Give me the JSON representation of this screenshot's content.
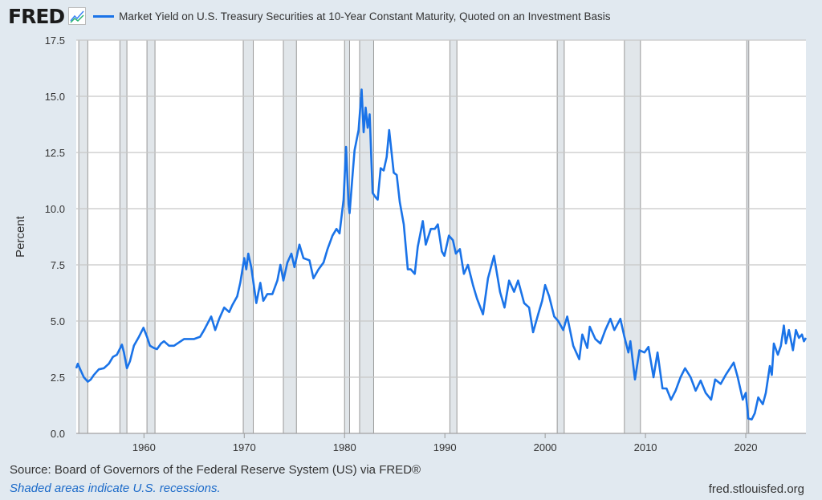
{
  "header": {
    "logo": "FRED",
    "series_title": "Market Yield on U.S. Treasury Securities at 10-Year Constant Maturity, Quoted on an Investment Basis"
  },
  "footer": {
    "source": "Source: Board of Governors of the Federal Reserve System (US) via FRED®",
    "note": "Shaded areas indicate U.S. recessions.",
    "site": "fred.stlouisfed.org"
  },
  "chart_data": {
    "type": "line",
    "title": "",
    "xlabel": "",
    "ylabel": "Percent",
    "xlim": [
      1953.25,
      2026.0
    ],
    "ylim": [
      0,
      17.5
    ],
    "grid": "horizontal",
    "line_color": "#1a73e8",
    "recession_color": "#e1e6ea",
    "x_ticks": [
      "1960",
      "1970",
      "1980",
      "1990",
      "2000",
      "2010",
      "2020"
    ],
    "y_ticks": [
      "0.0",
      "2.5",
      "5.0",
      "7.5",
      "10.0",
      "12.5",
      "15.0",
      "17.5"
    ],
    "recessions": [
      [
        1953.5,
        1954.4
      ],
      [
        1957.6,
        1958.3
      ],
      [
        1960.3,
        1961.1
      ],
      [
        1969.9,
        1970.9
      ],
      [
        1973.9,
        1975.2
      ],
      [
        1980.0,
        1980.5
      ],
      [
        1981.5,
        1982.9
      ],
      [
        1990.5,
        1991.2
      ],
      [
        2001.2,
        2001.9
      ],
      [
        2007.9,
        2009.5
      ],
      [
        2020.1,
        2020.3
      ]
    ],
    "series": [
      {
        "points": [
          [
            1953.25,
            2.9
          ],
          [
            1953.4,
            3.1
          ],
          [
            1953.7,
            2.8
          ],
          [
            1954.0,
            2.5
          ],
          [
            1954.4,
            2.3
          ],
          [
            1954.7,
            2.4
          ],
          [
            1955.0,
            2.6
          ],
          [
            1955.5,
            2.85
          ],
          [
            1956.0,
            2.9
          ],
          [
            1956.5,
            3.1
          ],
          [
            1956.9,
            3.4
          ],
          [
            1957.3,
            3.5
          ],
          [
            1957.8,
            3.95
          ],
          [
            1958.0,
            3.6
          ],
          [
            1958.3,
            2.9
          ],
          [
            1958.6,
            3.2
          ],
          [
            1959.0,
            3.9
          ],
          [
            1959.5,
            4.3
          ],
          [
            1959.95,
            4.7
          ],
          [
            1960.3,
            4.3
          ],
          [
            1960.6,
            3.9
          ],
          [
            1961.0,
            3.8
          ],
          [
            1961.3,
            3.75
          ],
          [
            1961.7,
            4.0
          ],
          [
            1962.0,
            4.1
          ],
          [
            1962.5,
            3.9
          ],
          [
            1963.0,
            3.9
          ],
          [
            1963.5,
            4.05
          ],
          [
            1964.0,
            4.2
          ],
          [
            1964.5,
            4.2
          ],
          [
            1965.0,
            4.2
          ],
          [
            1965.6,
            4.3
          ],
          [
            1966.0,
            4.6
          ],
          [
            1966.7,
            5.2
          ],
          [
            1967.1,
            4.6
          ],
          [
            1967.5,
            5.1
          ],
          [
            1968.0,
            5.6
          ],
          [
            1968.5,
            5.4
          ],
          [
            1968.8,
            5.7
          ],
          [
            1969.3,
            6.1
          ],
          [
            1969.6,
            6.7
          ],
          [
            1970.0,
            7.8
          ],
          [
            1970.2,
            7.3
          ],
          [
            1970.4,
            8.0
          ],
          [
            1970.7,
            7.4
          ],
          [
            1971.2,
            5.8
          ],
          [
            1971.6,
            6.7
          ],
          [
            1971.9,
            5.9
          ],
          [
            1972.3,
            6.2
          ],
          [
            1972.8,
            6.2
          ],
          [
            1973.3,
            6.8
          ],
          [
            1973.6,
            7.5
          ],
          [
            1973.9,
            6.8
          ],
          [
            1974.3,
            7.6
          ],
          [
            1974.7,
            8.0
          ],
          [
            1975.0,
            7.4
          ],
          [
            1975.5,
            8.4
          ],
          [
            1975.9,
            7.8
          ],
          [
            1976.5,
            7.7
          ],
          [
            1976.9,
            6.9
          ],
          [
            1977.4,
            7.3
          ],
          [
            1977.9,
            7.6
          ],
          [
            1978.3,
            8.2
          ],
          [
            1978.8,
            8.8
          ],
          [
            1979.2,
            9.1
          ],
          [
            1979.5,
            8.9
          ],
          [
            1979.9,
            10.4
          ],
          [
            1980.15,
            12.75
          ],
          [
            1980.4,
            10.2
          ],
          [
            1980.5,
            9.8
          ],
          [
            1980.8,
            11.5
          ],
          [
            1981.0,
            12.6
          ],
          [
            1981.4,
            13.5
          ],
          [
            1981.7,
            15.3
          ],
          [
            1981.9,
            13.4
          ],
          [
            1982.1,
            14.5
          ],
          [
            1982.3,
            13.6
          ],
          [
            1982.5,
            14.2
          ],
          [
            1982.8,
            10.7
          ],
          [
            1983.1,
            10.5
          ],
          [
            1983.3,
            10.4
          ],
          [
            1983.6,
            11.8
          ],
          [
            1983.9,
            11.7
          ],
          [
            1984.2,
            12.3
          ],
          [
            1984.45,
            13.5
          ],
          [
            1984.9,
            11.6
          ],
          [
            1985.2,
            11.5
          ],
          [
            1985.5,
            10.3
          ],
          [
            1985.9,
            9.3
          ],
          [
            1986.3,
            7.3
          ],
          [
            1986.6,
            7.3
          ],
          [
            1987.0,
            7.1
          ],
          [
            1987.3,
            8.3
          ],
          [
            1987.8,
            9.45
          ],
          [
            1988.1,
            8.4
          ],
          [
            1988.6,
            9.1
          ],
          [
            1989.0,
            9.1
          ],
          [
            1989.3,
            9.3
          ],
          [
            1989.7,
            8.1
          ],
          [
            1989.95,
            7.9
          ],
          [
            1990.4,
            8.8
          ],
          [
            1990.8,
            8.6
          ],
          [
            1991.1,
            8.0
          ],
          [
            1991.5,
            8.2
          ],
          [
            1991.9,
            7.1
          ],
          [
            1992.3,
            7.5
          ],
          [
            1992.8,
            6.6
          ],
          [
            1993.2,
            6.0
          ],
          [
            1993.8,
            5.3
          ],
          [
            1994.3,
            6.9
          ],
          [
            1994.9,
            7.9
          ],
          [
            1995.5,
            6.3
          ],
          [
            1995.95,
            5.6
          ],
          [
            1996.4,
            6.8
          ],
          [
            1996.9,
            6.3
          ],
          [
            1997.3,
            6.8
          ],
          [
            1997.9,
            5.8
          ],
          [
            1998.4,
            5.6
          ],
          [
            1998.8,
            4.5
          ],
          [
            1999.3,
            5.3
          ],
          [
            1999.7,
            5.9
          ],
          [
            2000.0,
            6.6
          ],
          [
            2000.4,
            6.1
          ],
          [
            2000.9,
            5.2
          ],
          [
            2001.3,
            5.0
          ],
          [
            2001.8,
            4.6
          ],
          [
            2002.2,
            5.2
          ],
          [
            2002.8,
            3.9
          ],
          [
            2003.4,
            3.3
          ],
          [
            2003.7,
            4.4
          ],
          [
            2004.2,
            3.8
          ],
          [
            2004.45,
            4.75
          ],
          [
            2005.0,
            4.2
          ],
          [
            2005.5,
            4.0
          ],
          [
            2006.0,
            4.6
          ],
          [
            2006.5,
            5.1
          ],
          [
            2006.9,
            4.6
          ],
          [
            2007.5,
            5.1
          ],
          [
            2007.9,
            4.3
          ],
          [
            2008.3,
            3.6
          ],
          [
            2008.5,
            4.1
          ],
          [
            2008.95,
            2.4
          ],
          [
            2009.4,
            3.7
          ],
          [
            2009.9,
            3.6
          ],
          [
            2010.3,
            3.85
          ],
          [
            2010.8,
            2.5
          ],
          [
            2011.2,
            3.6
          ],
          [
            2011.7,
            2.0
          ],
          [
            2012.1,
            2.0
          ],
          [
            2012.55,
            1.5
          ],
          [
            2013.0,
            1.9
          ],
          [
            2013.5,
            2.5
          ],
          [
            2013.95,
            2.9
          ],
          [
            2014.5,
            2.5
          ],
          [
            2015.0,
            1.9
          ],
          [
            2015.5,
            2.35
          ],
          [
            2016.0,
            1.8
          ],
          [
            2016.55,
            1.5
          ],
          [
            2016.95,
            2.4
          ],
          [
            2017.5,
            2.2
          ],
          [
            2018.0,
            2.6
          ],
          [
            2018.8,
            3.15
          ],
          [
            2019.2,
            2.5
          ],
          [
            2019.7,
            1.5
          ],
          [
            2020.0,
            1.8
          ],
          [
            2020.25,
            0.66
          ],
          [
            2020.6,
            0.62
          ],
          [
            2020.9,
            0.9
          ],
          [
            2021.25,
            1.6
          ],
          [
            2021.7,
            1.3
          ],
          [
            2022.0,
            1.8
          ],
          [
            2022.4,
            3.0
          ],
          [
            2022.6,
            2.6
          ],
          [
            2022.8,
            4.0
          ],
          [
            2023.2,
            3.5
          ],
          [
            2023.5,
            3.9
          ],
          [
            2023.8,
            4.8
          ],
          [
            2024.0,
            4.0
          ],
          [
            2024.3,
            4.6
          ],
          [
            2024.7,
            3.7
          ],
          [
            2025.0,
            4.6
          ],
          [
            2025.3,
            4.25
          ],
          [
            2025.6,
            4.4
          ],
          [
            2025.8,
            4.1
          ],
          [
            2026.0,
            4.25
          ]
        ]
      }
    ]
  }
}
